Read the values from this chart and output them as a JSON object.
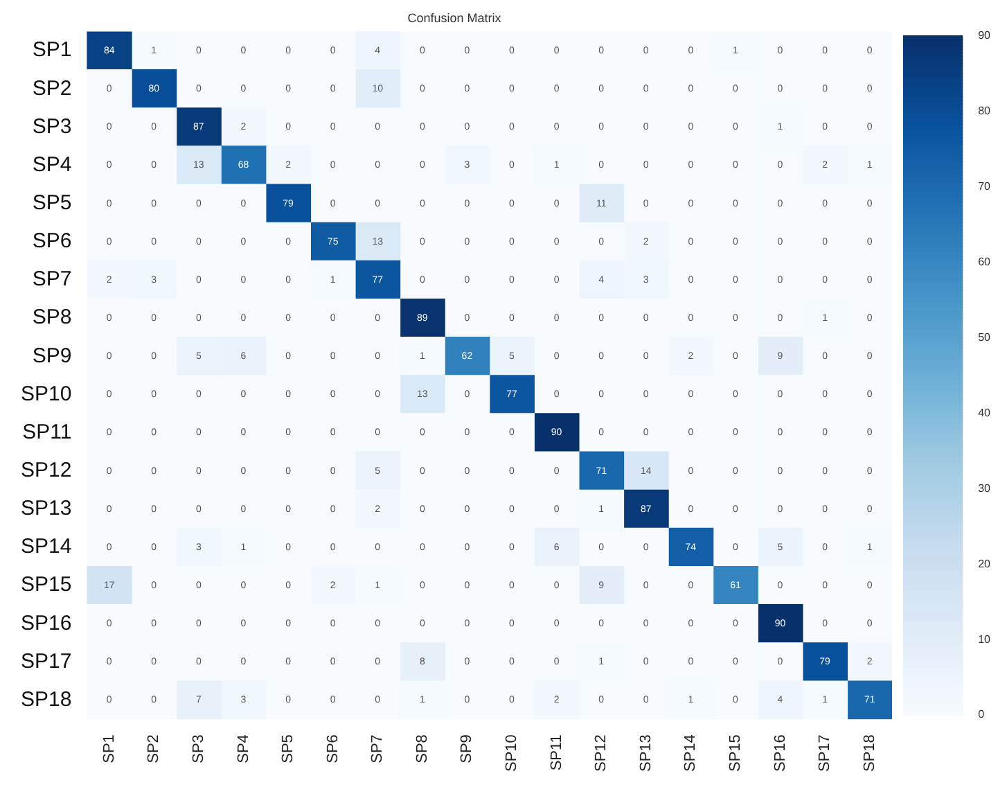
{
  "chart_data": {
    "type": "heatmap",
    "title": "Confusion Matrix",
    "categories": [
      "SP1",
      "SP2",
      "SP3",
      "SP4",
      "SP5",
      "SP6",
      "SP7",
      "SP8",
      "SP9",
      "SP10",
      "SP11",
      "SP12",
      "SP13",
      "SP14",
      "SP15",
      "SP16",
      "SP17",
      "SP18"
    ],
    "y_categories": [
      "SP1",
      "SP2",
      "SP3",
      "SP4",
      "SP5",
      "SP6",
      "SP7",
      "SP8",
      "SP9",
      "SP10",
      "SP11",
      "SP12",
      "SP13",
      "SP14",
      "SP15",
      "SP16",
      "SP17",
      "SP18"
    ],
    "cells": [
      [
        84,
        1,
        0,
        0,
        0,
        0,
        4,
        0,
        0,
        0,
        0,
        0,
        0,
        0,
        1,
        0,
        0,
        0
      ],
      [
        0,
        80,
        0,
        0,
        0,
        0,
        10,
        0,
        0,
        0,
        0,
        0,
        0,
        0,
        0,
        0,
        0,
        0
      ],
      [
        0,
        0,
        87,
        2,
        0,
        0,
        0,
        0,
        0,
        0,
        0,
        0,
        0,
        0,
        0,
        1,
        0,
        0
      ],
      [
        0,
        0,
        13,
        68,
        2,
        0,
        0,
        0,
        3,
        0,
        1,
        0,
        0,
        0,
        0,
        0,
        2,
        1
      ],
      [
        0,
        0,
        0,
        0,
        79,
        0,
        0,
        0,
        0,
        0,
        0,
        11,
        0,
        0,
        0,
        0,
        0,
        0
      ],
      [
        0,
        0,
        0,
        0,
        0,
        75,
        13,
        0,
        0,
        0,
        0,
        0,
        2,
        0,
        0,
        0,
        0,
        0
      ],
      [
        2,
        3,
        0,
        0,
        0,
        1,
        77,
        0,
        0,
        0,
        0,
        4,
        3,
        0,
        0,
        0,
        0,
        0
      ],
      [
        0,
        0,
        0,
        0,
        0,
        0,
        0,
        89,
        0,
        0,
        0,
        0,
        0,
        0,
        0,
        0,
        1,
        0
      ],
      [
        0,
        0,
        5,
        6,
        0,
        0,
        0,
        1,
        62,
        5,
        0,
        0,
        0,
        2,
        0,
        9,
        0,
        0
      ],
      [
        0,
        0,
        0,
        0,
        0,
        0,
        0,
        13,
        0,
        77,
        0,
        0,
        0,
        0,
        0,
        0,
        0,
        0
      ],
      [
        0,
        0,
        0,
        0,
        0,
        0,
        0,
        0,
        0,
        0,
        90,
        0,
        0,
        0,
        0,
        0,
        0,
        0
      ],
      [
        0,
        0,
        0,
        0,
        0,
        0,
        5,
        0,
        0,
        0,
        0,
        71,
        14,
        0,
        0,
        0,
        0,
        0
      ],
      [
        0,
        0,
        0,
        0,
        0,
        0,
        2,
        0,
        0,
        0,
        0,
        1,
        87,
        0,
        0,
        0,
        0,
        0
      ],
      [
        0,
        0,
        3,
        1,
        0,
        0,
        0,
        0,
        0,
        0,
        6,
        0,
        0,
        74,
        0,
        5,
        0,
        1
      ],
      [
        17,
        0,
        0,
        0,
        0,
        2,
        1,
        0,
        0,
        0,
        0,
        9,
        0,
        0,
        61,
        0,
        0,
        0
      ],
      [
        0,
        0,
        0,
        0,
        0,
        0,
        0,
        0,
        0,
        0,
        0,
        0,
        0,
        0,
        0,
        90,
        0,
        0
      ],
      [
        0,
        0,
        0,
        0,
        0,
        0,
        0,
        8,
        0,
        0,
        0,
        1,
        0,
        0,
        0,
        0,
        79,
        2
      ],
      [
        0,
        0,
        7,
        3,
        0,
        0,
        0,
        1,
        0,
        0,
        2,
        0,
        0,
        1,
        0,
        4,
        1,
        71
      ]
    ],
    "clim": [
      0,
      90
    ],
    "cticks": [
      0,
      10,
      20,
      30,
      40,
      50,
      60,
      70,
      80,
      90
    ],
    "data_labels": true
  }
}
